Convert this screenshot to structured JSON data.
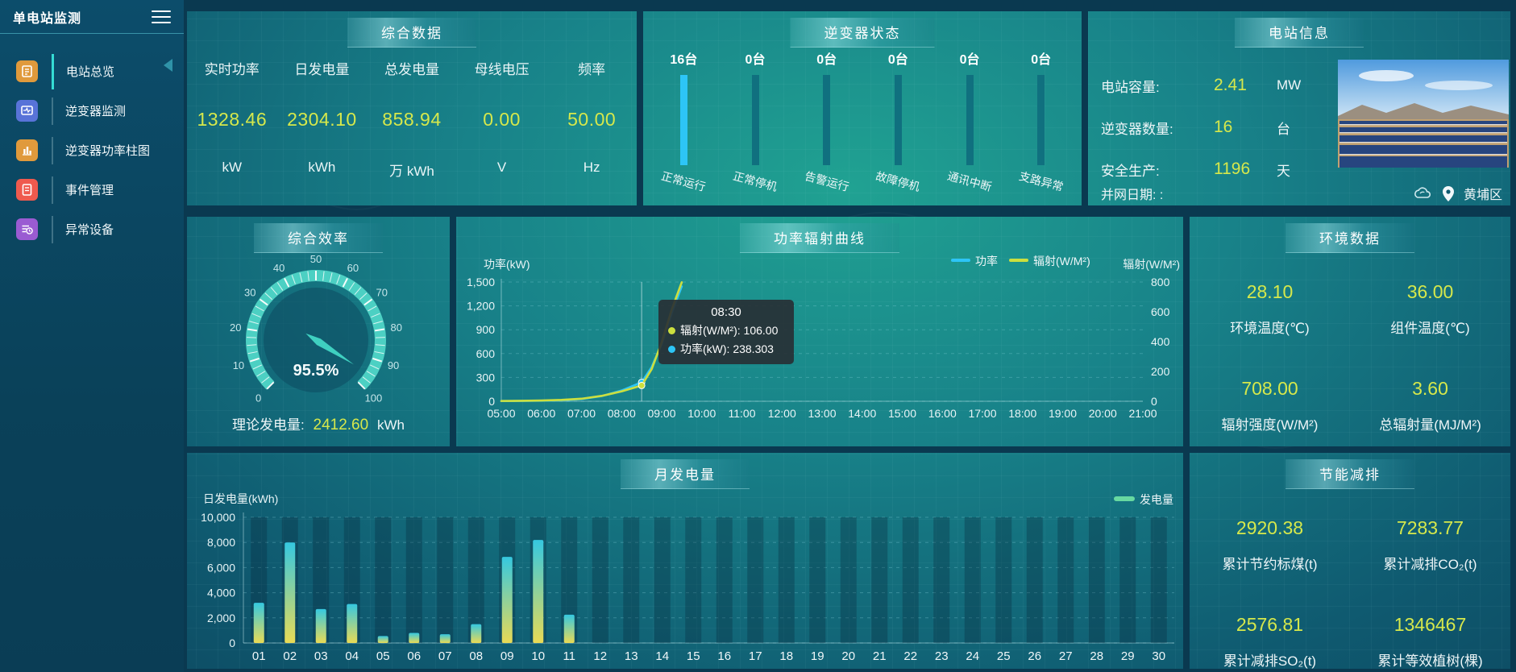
{
  "app": {
    "title": "单电站监测"
  },
  "sidebar": {
    "items": [
      {
        "label": "电站总览",
        "icon": "station-overview-icon",
        "color": "#e09a3c",
        "active": true
      },
      {
        "label": "逆变器监测",
        "icon": "inverter-monitor-icon",
        "color": "#5873d8",
        "active": false
      },
      {
        "label": "逆变器功率柱图",
        "icon": "inverter-power-bars-icon",
        "color": "#e09a3c",
        "active": false
      },
      {
        "label": "事件管理",
        "icon": "event-management-icon",
        "color": "#ef5a4e",
        "active": false
      },
      {
        "label": "异常设备",
        "icon": "abnormal-device-icon",
        "color": "#9a5bd2",
        "active": false
      }
    ]
  },
  "overview": {
    "title": "综合数据",
    "stats": [
      {
        "label": "实时功率",
        "value": "1328.46",
        "unit": "kW"
      },
      {
        "label": "日发电量",
        "value": "2304.10",
        "unit": "kWh"
      },
      {
        "label": "总发电量",
        "value": "858.94",
        "unit": "万 kWh"
      },
      {
        "label": "母线电压",
        "value": "0.00",
        "unit": "V"
      },
      {
        "label": "频率",
        "value": "50.00",
        "unit": "Hz"
      }
    ]
  },
  "inverter_status": {
    "title": "逆变器状态",
    "bars": [
      {
        "count": "16台",
        "label": "正常运行",
        "color": "#2dc5f6"
      },
      {
        "count": "0台",
        "label": "正常停机",
        "color": "#10707f"
      },
      {
        "count": "0台",
        "label": "告警运行",
        "color": "#10707f"
      },
      {
        "count": "0台",
        "label": "故障停机",
        "color": "#10707f"
      },
      {
        "count": "0台",
        "label": "通讯中断",
        "color": "#10707f"
      },
      {
        "count": "0台",
        "label": "支路异常",
        "color": "#10707f"
      }
    ]
  },
  "station_info": {
    "title": "电站信息",
    "rows": [
      {
        "label": "电站容量:",
        "value": "2.41",
        "unit": "MW"
      },
      {
        "label": "逆变器数量:",
        "value": "16",
        "unit": "台"
      },
      {
        "label": "安全生产:",
        "value": "1196",
        "unit": "天"
      }
    ],
    "grid_date": "并网日期: :",
    "location": "黄埔区"
  },
  "efficiency": {
    "title": "综合效率",
    "gauge": {
      "min": 0,
      "max": 100,
      "value": 95.5,
      "label": "95.5%",
      "tick_labels": [
        "0",
        "10",
        "20",
        "30",
        "40",
        "50",
        "60",
        "70",
        "80",
        "90",
        "100"
      ]
    },
    "theory": {
      "label": "理论发电量:",
      "value": "2412.60",
      "unit": "kWh"
    }
  },
  "environment": {
    "title": "环境数据",
    "cells": [
      {
        "value": "28.10",
        "label": "环境温度(℃)"
      },
      {
        "value": "36.00",
        "label": "组件温度(℃)"
      },
      {
        "value": "708.00",
        "label": "辐射强度(W/M²)"
      },
      {
        "value": "3.60",
        "label": "总辐射量(MJ/M²)"
      }
    ]
  },
  "saving": {
    "title": "节能减排",
    "cells": [
      {
        "value": "2920.38",
        "label": "累计节约标煤(t)"
      },
      {
        "value": "7283.77",
        "label": "累计减排CO₂(t)"
      },
      {
        "value": "2576.81",
        "label": "累计减排SO₂(t)"
      },
      {
        "value": "1346467",
        "label": "累计等效植树(棵)"
      }
    ]
  },
  "chart_data": [
    {
      "id": "power_radiation",
      "type": "line",
      "title": "功率辐射曲线",
      "x_ticks": [
        "05:00",
        "06:00",
        "07:00",
        "08:00",
        "09:00",
        "10:00",
        "11:00",
        "12:00",
        "13:00",
        "14:00",
        "15:00",
        "16:00",
        "17:00",
        "18:00",
        "19:00",
        "20:00",
        "21:00"
      ],
      "x_range": [
        5,
        21
      ],
      "left_axis": {
        "label": "功率(kW)",
        "ticks": [
          "0",
          "300",
          "600",
          "900",
          "1,200",
          "1,500"
        ],
        "max": 1500
      },
      "right_axis": {
        "label": "辐射(W/M²)",
        "ticks": [
          "0",
          "200",
          "400",
          "600",
          "800"
        ],
        "max": 800
      },
      "legend": [
        {
          "name": "功率",
          "color": "#2dc5f6"
        },
        {
          "name": "辐射(W/M²)",
          "color": "#ccdf3e"
        }
      ],
      "series": [
        {
          "name": "功率",
          "axis": "left",
          "color": "#2dc5f6",
          "points": [
            [
              5,
              3
            ],
            [
              5.5,
              4
            ],
            [
              6,
              7
            ],
            [
              6.5,
              13
            ],
            [
              7,
              28
            ],
            [
              7.5,
              65
            ],
            [
              8,
              135
            ],
            [
              8.5,
              238.303
            ],
            [
              8.75,
              430
            ],
            [
              9,
              720
            ],
            [
              9.25,
              1110
            ],
            [
              9.5,
              1445
            ]
          ]
        },
        {
          "name": "辐射(W/M²)",
          "axis": "right",
          "color": "#ccdf3e",
          "points": [
            [
              5,
              2
            ],
            [
              5.5,
              3
            ],
            [
              6,
              5
            ],
            [
              6.5,
              9
            ],
            [
              7,
              17
            ],
            [
              7.5,
              36
            ],
            [
              8,
              66
            ],
            [
              8.5,
              106
            ],
            [
              8.75,
              215
            ],
            [
              9,
              395
            ],
            [
              9.25,
              615
            ],
            [
              9.5,
              798
            ]
          ]
        }
      ],
      "tooltip": {
        "time": "08:30",
        "x": 8.5,
        "rows": [
          {
            "color": "#ccdf3e",
            "text": "辐射(W/M²): 106.00"
          },
          {
            "color": "#2dc5f6",
            "text": "功率(kW): 238.303"
          }
        ]
      }
    },
    {
      "id": "monthly_generation",
      "type": "bar",
      "title": "月发电量",
      "ylabel": "日发电量(kWh)",
      "y_ticks": [
        "0",
        "2,000",
        "4,000",
        "6,000",
        "8,000",
        "10,000"
      ],
      "ymax": 10000,
      "legend": [
        {
          "name": "发电量",
          "color": "#67d9a1"
        }
      ],
      "categories": [
        "01",
        "02",
        "03",
        "04",
        "05",
        "06",
        "07",
        "08",
        "09",
        "10",
        "11",
        "12",
        "13",
        "14",
        "15",
        "16",
        "17",
        "18",
        "19",
        "20",
        "21",
        "22",
        "23",
        "24",
        "25",
        "26",
        "27",
        "28",
        "29",
        "30"
      ],
      "values": [
        3200,
        8000,
        2700,
        3100,
        550,
        800,
        700,
        1500,
        6850,
        8200,
        2250,
        0,
        0,
        0,
        0,
        0,
        0,
        0,
        0,
        0,
        0,
        0,
        0,
        0,
        0,
        0,
        0,
        0,
        0,
        0
      ]
    }
  ]
}
